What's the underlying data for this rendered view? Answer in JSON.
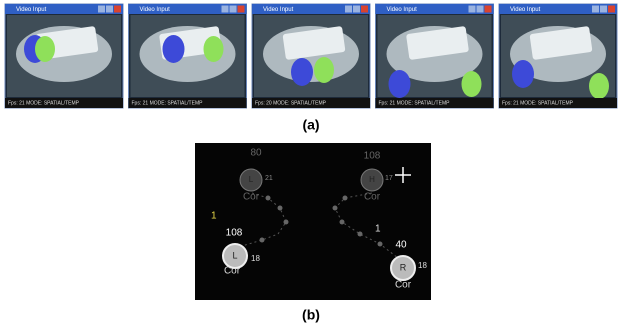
{
  "figure": {
    "screens": [
      {
        "title": "Video Input",
        "status": "Fps: 21  MODE: SPATIAL/TEMP"
      },
      {
        "title": "Video Input",
        "status": "Fps: 21  MODE: SPATIAL/TEMP"
      },
      {
        "title": "Video Input",
        "status": "Fps: 20  MODE: SPATIAL/TEMP"
      },
      {
        "title": "Video Input",
        "status": "Fps: 21  MODE: SPATIAL/TEMP"
      },
      {
        "title": "Video Input",
        "status": "Fps: 21  MODE: SPATIAL/TEMP"
      }
    ],
    "caption_a": "(a)",
    "tracker": {
      "left_top": {
        "count": "80",
        "letter": "L",
        "size": "21",
        "label": "Cor"
      },
      "right_top": {
        "count": "108",
        "letter": "H",
        "size": "17",
        "label": "Cor"
      },
      "left_bottom": {
        "count": "108",
        "letter": "L",
        "size": "18",
        "label": "Cor",
        "index": "1"
      },
      "right_bottom": {
        "count": "40",
        "letter": "R",
        "size": "18",
        "label": "Cor",
        "index": "1"
      }
    },
    "caption_b": "(b)"
  }
}
